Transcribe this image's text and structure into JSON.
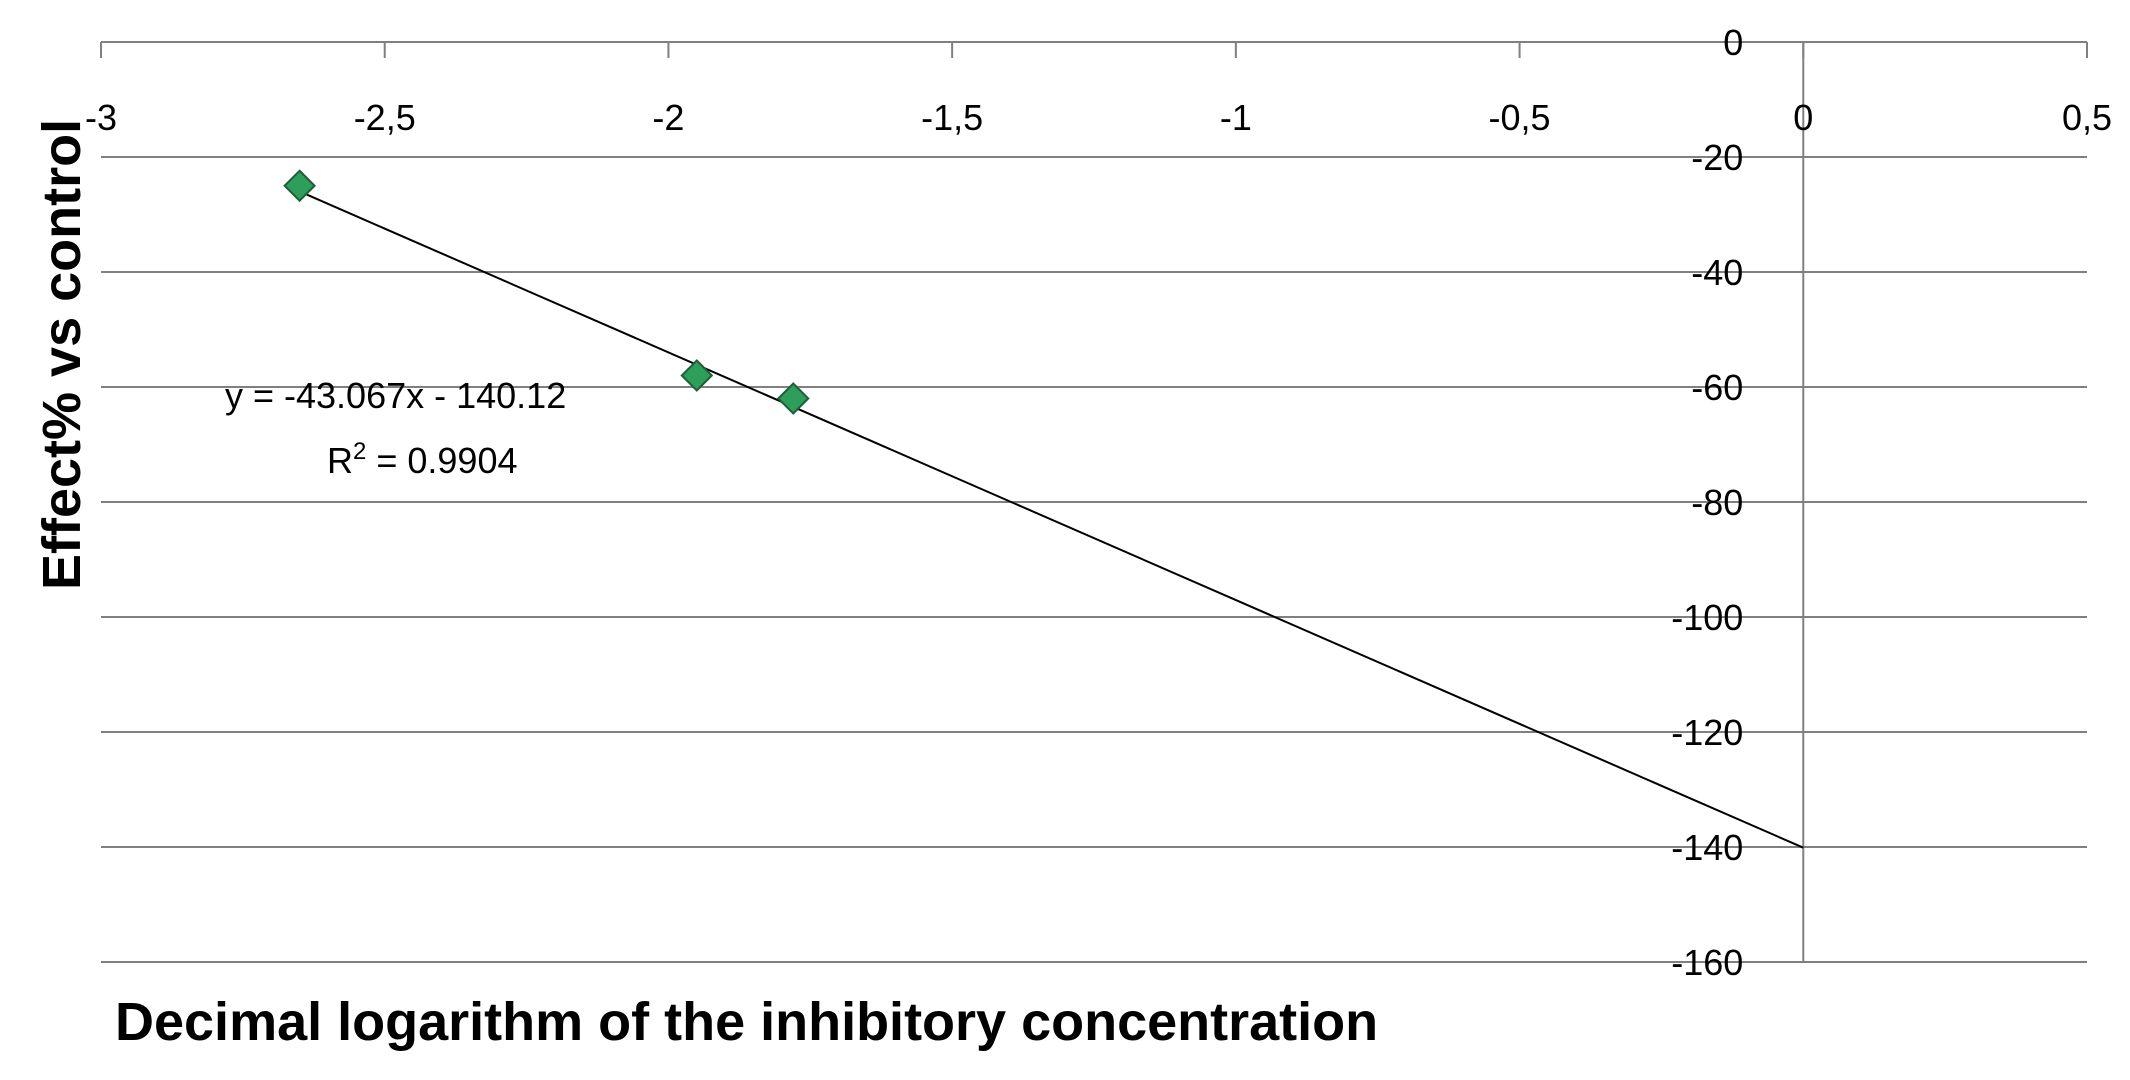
{
  "chart_data": {
    "type": "scatter",
    "title": "",
    "xlabel": "Decimal logarithm of the inhibitory concentration",
    "ylabel": "Effect% vs control",
    "xlim": [
      -3,
      0.5
    ],
    "ylim": [
      -160,
      0
    ],
    "x_ticks": [
      -3,
      -2.5,
      -2,
      -1.5,
      -1,
      -0.5,
      0,
      0.5
    ],
    "x_tick_labels": [
      "-3",
      "-2,5",
      "-2",
      "-1,5",
      "-1",
      "-0,5",
      "0",
      "0,5"
    ],
    "y_ticks": [
      0,
      -20,
      -40,
      -60,
      -80,
      -100,
      -120,
      -140,
      -160
    ],
    "y_tick_labels": [
      "0",
      "-20",
      "-40",
      "-60",
      "-80",
      "-100",
      "-120",
      "-140",
      "-160"
    ],
    "grid": "horizontal",
    "x_tick_side": "top",
    "y_tick_side": "right-of-zero",
    "series": [
      {
        "marker": "diamond",
        "color": "#2e9e5b",
        "points": [
          {
            "x": -2.65,
            "y": -25
          },
          {
            "x": -1.95,
            "y": -58
          },
          {
            "x": -1.78,
            "y": -62
          }
        ]
      }
    ],
    "trendline": {
      "type": "linear",
      "slope": -43.067,
      "intercept": -140.12,
      "x_from": -2.65,
      "x_to": 0,
      "color": "#000000",
      "equation_label": "y = -43.067x - 140.12",
      "r2_label_prefix": "R",
      "r2_label_sup": "2",
      "r2_label_suffix": " = 0.9904"
    }
  }
}
